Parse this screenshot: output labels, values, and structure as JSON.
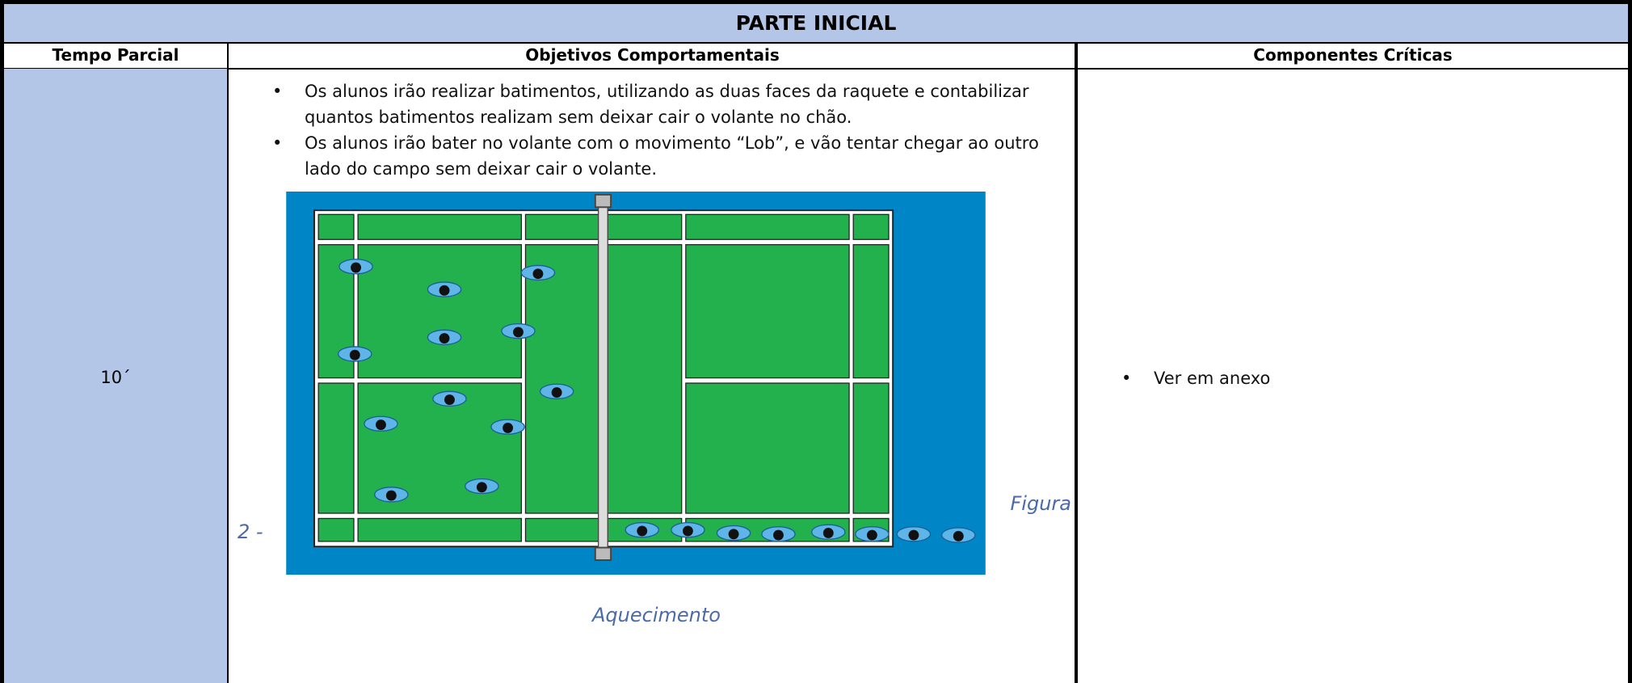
{
  "header": {
    "title": "PARTE INICIAL"
  },
  "table": {
    "headers": [
      "Tempo Parcial",
      "Objetivos Comportamentais",
      "Componentes Críticas"
    ],
    "rows": [
      {
        "time": "10´",
        "objectives": [
          "Os alunos irão realizar batimentos, utilizando as duas faces da raquete e contabilizar quantos batimentos realizam sem deixar cair o volante no chão.",
          "Os alunos irão bater no volante com o movimento “Lob”, e vão tentar chegar ao outro lado do campo sem deixar cair o volante."
        ],
        "figure_caption": [
          "Figura",
          "2 -",
          "Aquecimento"
        ],
        "components": [
          "Ver em anexo"
        ]
      }
    ]
  }
}
